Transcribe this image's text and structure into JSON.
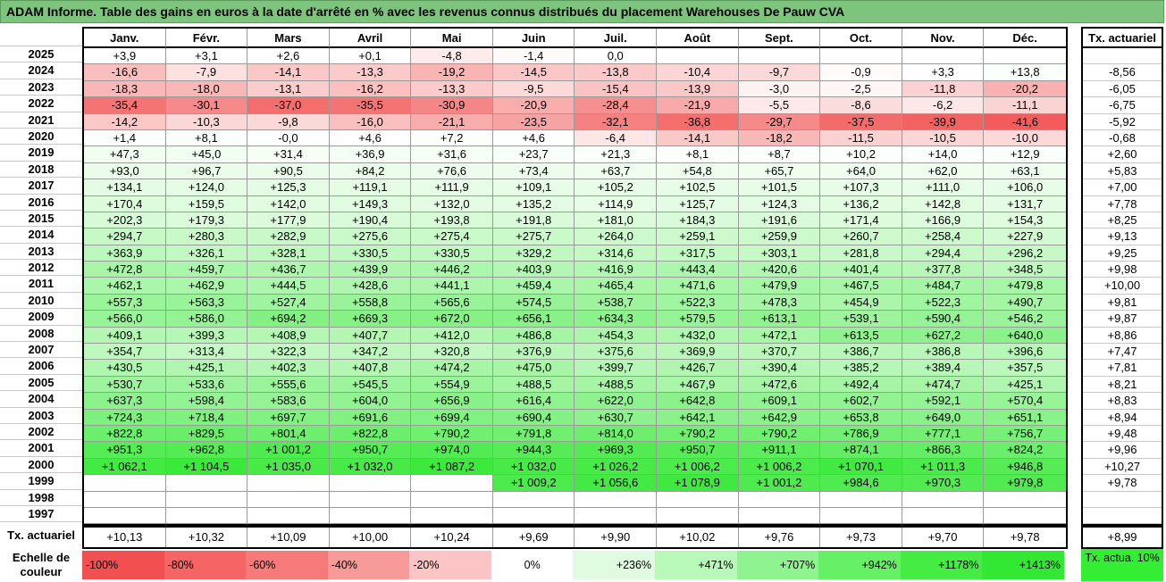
{
  "title": "ADAM Informe. Table des gains en euros à la date d'arrêté en % avec les revenus connus distribués du placement Warehouses De Pauw CVA",
  "chart_data": {
    "type": "heatmap",
    "columns": [
      "Janv.",
      "Févr.",
      "Mars",
      "Avril",
      "Mai",
      "Juin",
      "Juil.",
      "Août",
      "Sept.",
      "Oct.",
      "Nov.",
      "Déc."
    ],
    "right_header": "Tx. actuariel",
    "rows": [
      {
        "year": "2025",
        "cells": [
          "+3,9",
          "+3,1",
          "+2,6",
          "+0,1",
          "-4,8",
          "-1,4",
          "0,0",
          "",
          "",
          "",
          "",
          ""
        ],
        "tx": ""
      },
      {
        "year": "2024",
        "cells": [
          "-16,6",
          "-7,9",
          "-14,1",
          "-13,3",
          "-19,2",
          "-14,5",
          "-13,8",
          "-10,4",
          "-9,7",
          "-0,9",
          "+3,3",
          "+13,8"
        ],
        "tx": "-8,56"
      },
      {
        "year": "2023",
        "cells": [
          "-18,3",
          "-18,0",
          "-13,1",
          "-16,2",
          "-13,3",
          "-9,5",
          "-15,4",
          "-13,9",
          "-3,0",
          "-2,5",
          "-11,8",
          "-20,2"
        ],
        "tx": "-6,05"
      },
      {
        "year": "2022",
        "cells": [
          "-35,4",
          "-30,1",
          "-37,0",
          "-35,5",
          "-30,9",
          "-20,9",
          "-28,4",
          "-21,9",
          "-5,5",
          "-8,6",
          "-6,2",
          "-11,1"
        ],
        "tx": "-6,75"
      },
      {
        "year": "2021",
        "cells": [
          "-14,2",
          "-10,3",
          "-9,8",
          "-16,0",
          "-21,1",
          "-23,5",
          "-32,1",
          "-36,8",
          "-29,7",
          "-37,5",
          "-39,9",
          "-41,6"
        ],
        "tx": "-5,92"
      },
      {
        "year": "2020",
        "cells": [
          "+1,4",
          "+8,1",
          "-0,0",
          "+4,6",
          "+7,2",
          "+4,6",
          "-6,4",
          "-14,1",
          "-18,2",
          "-11,5",
          "-10,5",
          "-10,0"
        ],
        "tx": "-0,68"
      },
      {
        "year": "2019",
        "cells": [
          "+47,3",
          "+45,0",
          "+31,4",
          "+36,9",
          "+31,6",
          "+23,7",
          "+21,3",
          "+8,1",
          "+8,7",
          "+10,2",
          "+14,0",
          "+12,9"
        ],
        "tx": "+2,60"
      },
      {
        "year": "2018",
        "cells": [
          "+93,0",
          "+96,7",
          "+90,5",
          "+84,2",
          "+76,6",
          "+73,4",
          "+63,7",
          "+54,8",
          "+65,7",
          "+64,0",
          "+62,0",
          "+63,1"
        ],
        "tx": "+5,83"
      },
      {
        "year": "2017",
        "cells": [
          "+134,1",
          "+124,0",
          "+125,3",
          "+119,1",
          "+111,9",
          "+109,1",
          "+105,2",
          "+102,5",
          "+101,5",
          "+107,3",
          "+111,0",
          "+106,0"
        ],
        "tx": "+7,00"
      },
      {
        "year": "2016",
        "cells": [
          "+170,4",
          "+159,5",
          "+142,0",
          "+149,3",
          "+132,0",
          "+135,2",
          "+114,9",
          "+125,7",
          "+124,3",
          "+136,2",
          "+142,8",
          "+131,7"
        ],
        "tx": "+7,78"
      },
      {
        "year": "2015",
        "cells": [
          "+202,3",
          "+179,3",
          "+177,9",
          "+190,4",
          "+193,8",
          "+191,8",
          "+181,0",
          "+184,3",
          "+191,6",
          "+171,4",
          "+166,9",
          "+154,3"
        ],
        "tx": "+8,25"
      },
      {
        "year": "2014",
        "cells": [
          "+294,7",
          "+280,3",
          "+282,9",
          "+275,6",
          "+275,4",
          "+275,7",
          "+264,0",
          "+259,1",
          "+259,9",
          "+260,7",
          "+258,4",
          "+227,9"
        ],
        "tx": "+9,13"
      },
      {
        "year": "2013",
        "cells": [
          "+363,9",
          "+326,1",
          "+328,1",
          "+330,5",
          "+330,5",
          "+329,2",
          "+314,6",
          "+317,5",
          "+303,1",
          "+281,8",
          "+294,4",
          "+296,2"
        ],
        "tx": "+9,25"
      },
      {
        "year": "2012",
        "cells": [
          "+472,8",
          "+459,7",
          "+436,7",
          "+439,9",
          "+446,2",
          "+403,9",
          "+416,9",
          "+443,4",
          "+420,6",
          "+401,4",
          "+377,8",
          "+348,5"
        ],
        "tx": "+9,98"
      },
      {
        "year": "2011",
        "cells": [
          "+462,1",
          "+462,9",
          "+444,5",
          "+428,6",
          "+441,1",
          "+459,4",
          "+465,4",
          "+471,6",
          "+479,9",
          "+467,5",
          "+484,7",
          "+479,8"
        ],
        "tx": "+10,00"
      },
      {
        "year": "2010",
        "cells": [
          "+557,3",
          "+563,3",
          "+527,4",
          "+558,8",
          "+565,6",
          "+574,5",
          "+538,7",
          "+522,3",
          "+478,3",
          "+454,9",
          "+522,3",
          "+490,7"
        ],
        "tx": "+9,81"
      },
      {
        "year": "2009",
        "cells": [
          "+566,0",
          "+586,0",
          "+694,2",
          "+669,3",
          "+672,0",
          "+656,1",
          "+634,3",
          "+579,5",
          "+613,1",
          "+539,1",
          "+590,4",
          "+546,2"
        ],
        "tx": "+9,87"
      },
      {
        "year": "2008",
        "cells": [
          "+409,1",
          "+399,3",
          "+408,9",
          "+407,7",
          "+412,0",
          "+486,8",
          "+454,3",
          "+432,0",
          "+472,1",
          "+613,5",
          "+627,2",
          "+640,0"
        ],
        "tx": "+8,86"
      },
      {
        "year": "2007",
        "cells": [
          "+354,7",
          "+313,4",
          "+322,3",
          "+347,2",
          "+320,8",
          "+376,9",
          "+375,6",
          "+369,9",
          "+370,7",
          "+386,7",
          "+386,8",
          "+396,6"
        ],
        "tx": "+7,47"
      },
      {
        "year": "2006",
        "cells": [
          "+430,5",
          "+425,1",
          "+402,3",
          "+407,8",
          "+474,2",
          "+475,0",
          "+399,7",
          "+426,7",
          "+390,4",
          "+385,2",
          "+389,4",
          "+357,5"
        ],
        "tx": "+7,81"
      },
      {
        "year": "2005",
        "cells": [
          "+530,7",
          "+533,6",
          "+555,6",
          "+545,5",
          "+554,9",
          "+488,5",
          "+488,5",
          "+467,9",
          "+472,6",
          "+492,4",
          "+474,7",
          "+425,1"
        ],
        "tx": "+8,21"
      },
      {
        "year": "2004",
        "cells": [
          "+637,3",
          "+598,4",
          "+583,6",
          "+604,0",
          "+656,9",
          "+616,4",
          "+622,0",
          "+642,8",
          "+609,1",
          "+602,7",
          "+592,1",
          "+570,4"
        ],
        "tx": "+8,83"
      },
      {
        "year": "2003",
        "cells": [
          "+724,3",
          "+718,4",
          "+697,7",
          "+691,6",
          "+699,4",
          "+690,4",
          "+630,7",
          "+642,1",
          "+642,9",
          "+653,8",
          "+649,0",
          "+651,1"
        ],
        "tx": "+8,94"
      },
      {
        "year": "2002",
        "cells": [
          "+822,8",
          "+829,5",
          "+801,4",
          "+822,8",
          "+790,2",
          "+791,8",
          "+814,0",
          "+790,2",
          "+790,2",
          "+786,9",
          "+777,1",
          "+756,7"
        ],
        "tx": "+9,48"
      },
      {
        "year": "2001",
        "cells": [
          "+951,3",
          "+962,8",
          "+1 001,2",
          "+950,7",
          "+974,0",
          "+944,3",
          "+969,3",
          "+950,7",
          "+911,1",
          "+874,1",
          "+866,3",
          "+824,2"
        ],
        "tx": "+9,96"
      },
      {
        "year": "2000",
        "cells": [
          "+1 062,1",
          "+1 104,5",
          "+1 035,0",
          "+1 032,0",
          "+1 087,2",
          "+1 032,0",
          "+1 026,2",
          "+1 006,2",
          "+1 006,2",
          "+1 070,1",
          "+1 011,3",
          "+946,8"
        ],
        "tx": "+10,27"
      },
      {
        "year": "1999",
        "cells": [
          "",
          "",
          "",
          "",
          "",
          "+1 009,2",
          "+1 056,6",
          "+1 078,9",
          "+1 001,2",
          "+984,6",
          "+970,3",
          "+979,8"
        ],
        "tx": "+9,78"
      },
      {
        "year": "1998",
        "cells": [
          "",
          "",
          "",
          "",
          "",
          "",
          "",
          "",
          "",
          "",
          "",
          ""
        ],
        "tx": ""
      },
      {
        "year": "1997",
        "cells": [
          "",
          "",
          "",
          "",
          "",
          "",
          "",
          "",
          "",
          "",
          "",
          ""
        ],
        "tx": ""
      }
    ],
    "footer": {
      "label": "Tx. actuariel",
      "values": [
        "+10,13",
        "+10,32",
        "+10,09",
        "+10,00",
        "+10,24",
        "+9,69",
        "+9,90",
        "+10,02",
        "+9,76",
        "+9,73",
        "+9,70",
        "+9,78"
      ],
      "total": "+8,99"
    },
    "scale": {
      "label": "Echelle de couleur",
      "stops": [
        {
          "label": "-100%",
          "color": "#f25050"
        },
        {
          "label": "-80%",
          "color": "#f56565"
        },
        {
          "label": "-60%",
          "color": "#f77a7a"
        },
        {
          "label": "-40%",
          "color": "#f99a9a"
        },
        {
          "label": "-20%",
          "color": "#fcc4c4"
        },
        {
          "label": "0%",
          "color": "#ffffff"
        },
        {
          "label": "+236%",
          "color": "#e0fce0"
        },
        {
          "label": "+471%",
          "color": "#b8f8b8"
        },
        {
          "label": "+707%",
          "color": "#8ff48f"
        },
        {
          "label": "+942%",
          "color": "#66f066"
        },
        {
          "label": "+1178%",
          "color": "#44ec44"
        },
        {
          "label": "+1413%",
          "color": "#33e833"
        }
      ],
      "tx_label": "Tx. actua. 10%",
      "tx_color": "#33ee33"
    }
  }
}
